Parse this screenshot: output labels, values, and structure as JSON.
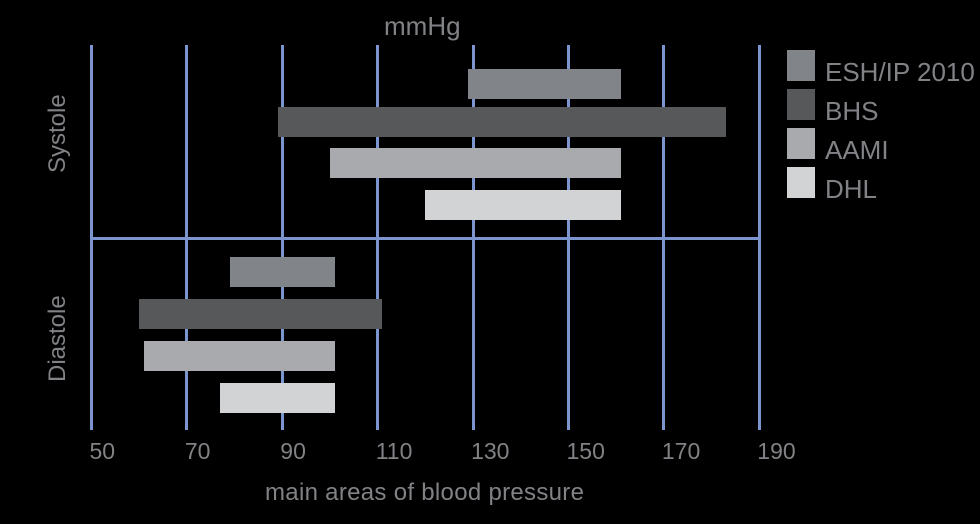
{
  "title": "mmHg",
  "x_axis": {
    "label": "main areas of blood pressure",
    "ticks": [
      50,
      70,
      90,
      110,
      130,
      150,
      170,
      190
    ],
    "min": 50,
    "max": 190
  },
  "groups": [
    {
      "label": "Systole"
    },
    {
      "label": "Diastole"
    }
  ],
  "legend": [
    {
      "label": "ESH/IP 2010",
      "color": "#818489"
    },
    {
      "label": "BHS",
      "color": "#57585A"
    },
    {
      "label": "AAMI",
      "color": "#A8AAAD"
    },
    {
      "label": "DHL",
      "color": "#D1D3D5"
    }
  ],
  "colors": {
    "background": "#000000",
    "grid": "#7C95CF",
    "text": "#808285"
  },
  "chart_data": {
    "type": "bar",
    "orientation": "horizontal-range",
    "title": "mmHg",
    "xlabel": "main areas of blood pressure",
    "categories": [
      "Systole",
      "Diastole"
    ],
    "series": [
      {
        "name": "ESH/IP 2010",
        "color": "#818489",
        "ranges_mmHg": {
          "Systole": [
            129,
            161
          ],
          "Diastole": [
            79,
            101
          ]
        }
      },
      {
        "name": "BHS",
        "color": "#57585A",
        "ranges_mmHg": {
          "Systole": [
            89,
            183
          ],
          "Diastole": [
            60,
            111
          ]
        }
      },
      {
        "name": "AAMI",
        "color": "#A8AAAD",
        "ranges_mmHg": {
          "Systole": [
            100,
            161
          ],
          "Diastole": [
            61,
            101
          ]
        }
      },
      {
        "name": "DHL",
        "color": "#D1D3D5",
        "ranges_mmHg": {
          "Systole": [
            120,
            161
          ],
          "Diastole": [
            77,
            101
          ]
        }
      }
    ],
    "x_ticks": [
      50,
      70,
      90,
      110,
      130,
      150,
      170,
      190
    ],
    "xlim": [
      50,
      190
    ],
    "grid": true,
    "legend_position": "top-right"
  }
}
